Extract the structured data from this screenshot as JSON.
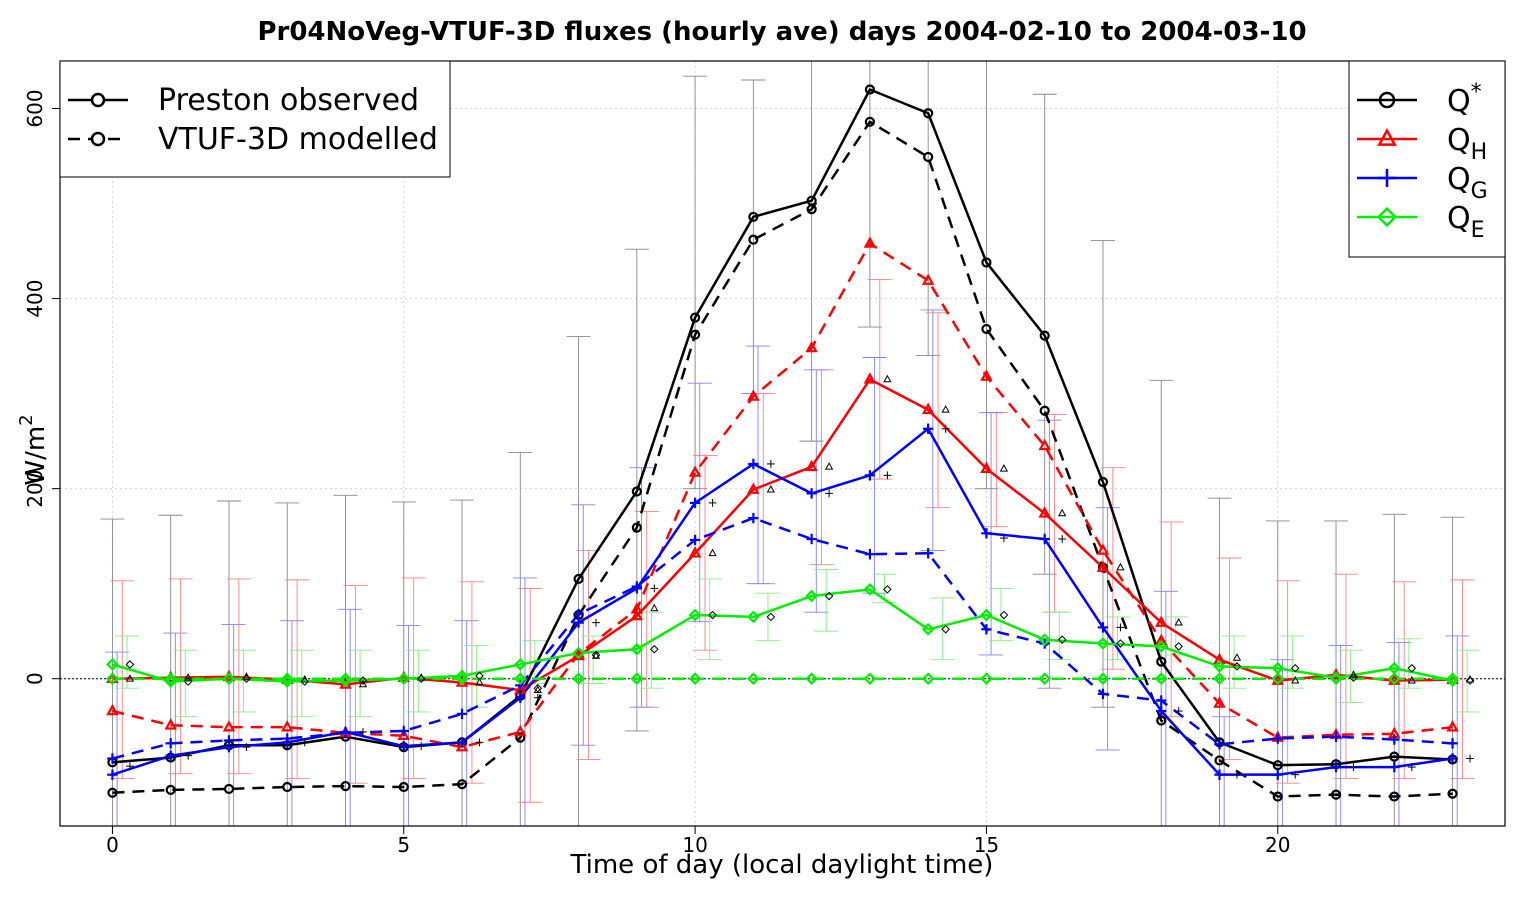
{
  "chart_data": {
    "type": "line",
    "title": "Pr04NoVeg-VTUF-3D fluxes (hourly ave) days 2004-02-10 to 2004-03-10",
    "xlabel": "Time of day (local daylight time)",
    "ylabel": "W/m",
    "ylabel_sup": "2",
    "xlim": [
      -0.9,
      23.9
    ],
    "ylim": [
      -155,
      650
    ],
    "x_ticks": [
      0,
      5,
      10,
      15,
      20
    ],
    "y_ticks": [
      0,
      200,
      400,
      600
    ],
    "grid": true,
    "legend_style": {
      "position": "top-left",
      "entries": [
        {
          "label": "Preston observed",
          "dash": "solid"
        },
        {
          "label": "VTUF-3D modelled",
          "dash": "dashed"
        }
      ]
    },
    "legend_flux": {
      "position": "top-right",
      "entries": [
        {
          "label": "Q*",
          "base": "Q",
          "sup": "*",
          "sub": "",
          "color": "#000000",
          "marker": "circle"
        },
        {
          "label": "QH",
          "base": "Q",
          "sup": "",
          "sub": "H",
          "color": "#ff0000",
          "marker": "triangle"
        },
        {
          "label": "QG",
          "base": "Q",
          "sup": "",
          "sub": "G",
          "color": "#0000ff",
          "marker": "plus"
        },
        {
          "label": "QE",
          "base": "Q",
          "sup": "",
          "sub": "E",
          "color": "#00ee00",
          "marker": "diamond"
        }
      ]
    },
    "x": [
      0,
      1,
      2,
      3,
      4,
      5,
      6,
      7,
      8,
      9,
      10,
      11,
      12,
      13,
      14,
      15,
      16,
      17,
      18,
      19,
      20,
      21,
      22,
      23
    ],
    "series": [
      {
        "flux": "Q*",
        "kind": "observed",
        "color": "#000000",
        "marker": "circle",
        "dash": "solid",
        "values": [
          -88,
          -83,
          -70,
          -70,
          -61,
          -72,
          -67,
          -18,
          105,
          197,
          380,
          486,
          503,
          620,
          595,
          438,
          361,
          207,
          18,
          -67,
          -91,
          -90,
          -82,
          -85
        ]
      },
      {
        "flux": "Q*",
        "kind": "modelled",
        "color": "#000000",
        "marker": "circle",
        "dash": "dashed",
        "values": [
          -120,
          -117,
          -116,
          -114,
          -113,
          -114,
          -111,
          -62,
          67,
          159,
          362,
          462,
          494,
          586,
          549,
          368,
          282,
          117,
          -44,
          -86,
          -124,
          -122,
          -124,
          -121
        ]
      },
      {
        "flux": "QH",
        "kind": "observed",
        "color": "#ff0000",
        "marker": "triangle",
        "dash": "solid",
        "values": [
          0,
          1,
          2,
          -1,
          -6,
          1,
          -4,
          -12,
          24,
          66,
          132,
          199,
          223,
          315,
          283,
          221,
          174,
          117,
          59,
          20,
          -2,
          4,
          -2,
          -1
        ]
      },
      {
        "flux": "QH",
        "kind": "modelled",
        "color": "#ff0000",
        "marker": "triangle",
        "dash": "dashed",
        "values": [
          -34,
          -49,
          -51,
          -51,
          -57,
          -60,
          -72,
          -56,
          26,
          73,
          217,
          297,
          348,
          458,
          419,
          318,
          245,
          135,
          40,
          -26,
          -62,
          -59,
          -58,
          -51
        ]
      },
      {
        "flux": "QG",
        "kind": "observed",
        "color": "#0000ff",
        "marker": "plus",
        "dash": "solid",
        "values": [
          -101,
          -81,
          -72,
          -67,
          -56,
          -71,
          -67,
          -20,
          59,
          95,
          185,
          226,
          195,
          214,
          263,
          153,
          147,
          54,
          -34,
          -101,
          -101,
          -93,
          -93,
          -84
        ]
      },
      {
        "flux": "QG",
        "kind": "modelled",
        "color": "#0000ff",
        "marker": "plus",
        "dash": "dashed",
        "values": [
          -84,
          -68,
          -65,
          -63,
          -57,
          -55,
          -37,
          -7,
          68,
          97,
          146,
          169,
          147,
          131,
          132,
          52,
          37,
          -16,
          -23,
          -69,
          -63,
          -61,
          -64,
          -68
        ]
      },
      {
        "flux": "QE",
        "kind": "observed",
        "color": "#00ee00",
        "marker": "diamond",
        "dash": "solid",
        "values": [
          15,
          -3,
          0,
          -3,
          -2,
          0,
          3,
          15,
          27,
          31,
          67,
          65,
          87,
          94,
          52,
          67,
          41,
          37,
          34,
          13,
          11,
          1,
          11,
          -2
        ]
      },
      {
        "flux": "QE",
        "kind": "modelled",
        "color": "#00ee00",
        "marker": "diamond",
        "dash": "dashed",
        "values": [
          0,
          0,
          0,
          0,
          0,
          0,
          0,
          0,
          0,
          0,
          0,
          0,
          0,
          0,
          0,
          0,
          0,
          0,
          0,
          0,
          0,
          0,
          0,
          0
        ]
      }
    ],
    "error_bars": [
      {
        "flux": "Q*",
        "color": "#888888",
        "offset": 0,
        "low": [
          -155,
          -155,
          -155,
          -155,
          -155,
          -155,
          -155,
          -155,
          -155,
          -55,
          200,
          300,
          250,
          370,
          340,
          200,
          110,
          -30,
          -155,
          -155,
          -155,
          -155,
          -155,
          -155
        ],
        "high": [
          168,
          172,
          187,
          185,
          193,
          186,
          188,
          238,
          360,
          452,
          634,
          630,
          650,
          650,
          650,
          650,
          615,
          461,
          314,
          190,
          166,
          166,
          173,
          170
        ]
      },
      {
        "flux": "QH",
        "color": "#ff8080",
        "offset": 0.17,
        "low": [
          -105,
          -100,
          -100,
          -105,
          -110,
          -105,
          -110,
          -130,
          -85,
          -30,
          30,
          100,
          120,
          210,
          180,
          160,
          70,
          10,
          -40,
          -85,
          -110,
          -105,
          -105,
          -105
        ],
        "high": [
          103,
          105,
          105,
          104,
          98,
          106,
          102,
          95,
          135,
          176,
          235,
          300,
          325,
          420,
          385,
          280,
          278,
          222,
          165,
          127,
          103,
          110,
          102,
          104
        ]
      },
      {
        "flux": "QG",
        "color": "#8080ff",
        "offset": 0.08,
        "low": [
          -155,
          -155,
          -155,
          -155,
          -155,
          -155,
          -155,
          -155,
          -70,
          -30,
          60,
          100,
          70,
          90,
          135,
          25,
          -10,
          -75,
          -155,
          -155,
          -155,
          -155,
          -155,
          -155
        ],
        "high": [
          28,
          48,
          57,
          61,
          73,
          56,
          61,
          106,
          183,
          222,
          311,
          350,
          325,
          338,
          388,
          280,
          272,
          180,
          92,
          -40,
          20,
          35,
          38,
          45
        ]
      },
      {
        "flux": "QE",
        "color": "#80ee80",
        "offset": 0.25,
        "low": [
          -10,
          -40,
          -35,
          -40,
          -40,
          -35,
          -30,
          -5,
          -5,
          -10,
          20,
          40,
          50,
          80,
          20,
          40,
          20,
          20,
          25,
          -10,
          -10,
          -25,
          -10,
          -35
        ],
        "high": [
          45,
          30,
          30,
          30,
          30,
          30,
          35,
          40,
          45,
          70,
          105,
          90,
          115,
          110,
          85,
          95,
          70,
          65,
          65,
          45,
          45,
          30,
          42,
          30
        ]
      }
    ],
    "annotation_markers": [
      {
        "flux": "Q*",
        "marker": "diamond",
        "offset": 0.3,
        "values": [
          15,
          -3,
          0,
          -3,
          -2,
          0,
          3,
          -10,
          25,
          31,
          67,
          65,
          87,
          94,
          52,
          67,
          41,
          37,
          34,
          13,
          11,
          1,
          11,
          -2
        ]
      },
      {
        "flux": "QH",
        "marker": "triangle",
        "offset": 0.3,
        "values": [
          0,
          1,
          2,
          -1,
          -6,
          1,
          -4,
          -12,
          24,
          74,
          132,
          199,
          223,
          315,
          283,
          221,
          174,
          117,
          59,
          22,
          -2,
          4,
          -2,
          -1
        ]
      },
      {
        "flux": "QG",
        "marker": "plus",
        "offset": 0.3,
        "values": [
          -92,
          -81,
          -72,
          -67,
          -56,
          -71,
          -67,
          -20,
          59,
          95,
          185,
          226,
          195,
          214,
          263,
          148,
          147,
          54,
          -34,
          -101,
          -101,
          -93,
          -93,
          -84
        ]
      }
    ]
  }
}
